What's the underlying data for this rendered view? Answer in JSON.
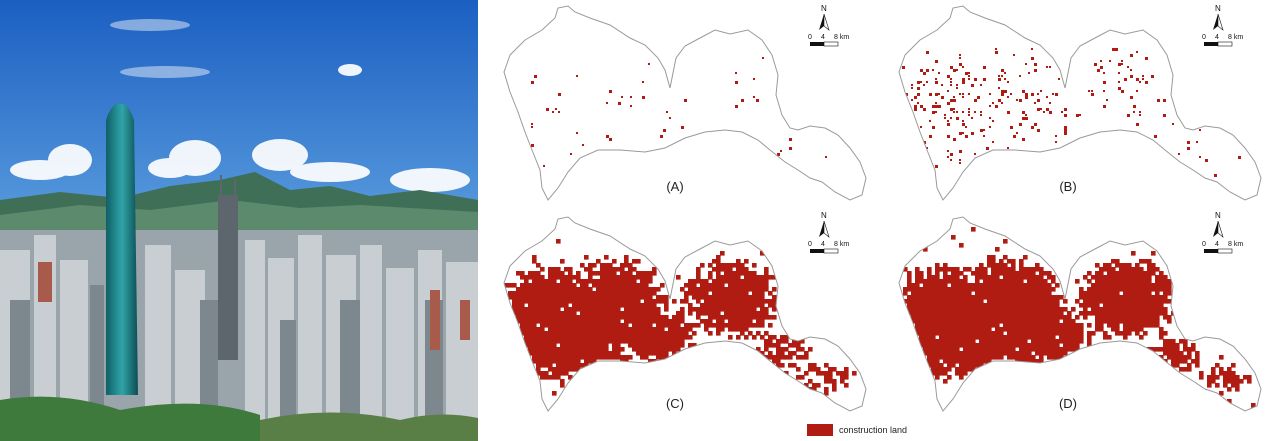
{
  "photo": {
    "subject": "city-skyline-photo"
  },
  "panels": [
    {
      "label": "(A)",
      "coverage": 0.02
    },
    {
      "label": "(B)",
      "coverage": 0.12
    },
    {
      "label": "(C)",
      "coverage": 0.62
    },
    {
      "label": "(D)",
      "coverage": 0.7
    }
  ],
  "scale_bar": {
    "north": "N",
    "ticks": [
      "0",
      "4",
      "8 km"
    ]
  },
  "legend": {
    "label": "construction land",
    "color": "#b01c12"
  },
  "colors": {
    "outline": "#9a9a9a",
    "construction": "#b01c12",
    "sky_top": "#1d63c4",
    "sky_bottom": "#9cc6ea"
  }
}
